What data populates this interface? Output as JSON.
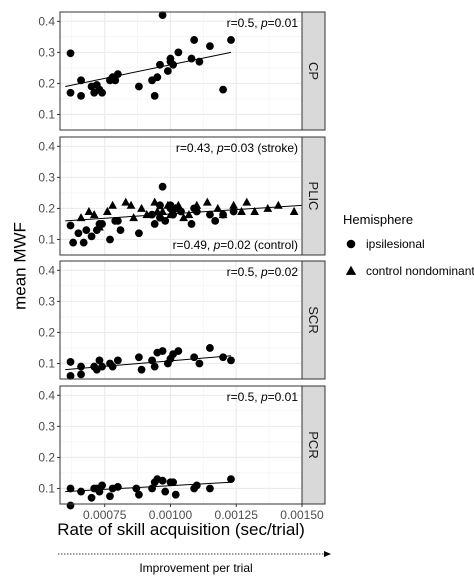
{
  "chart_data": {
    "type": "scatter",
    "ylabel": "mean MWF",
    "xlabel": "Rate of skill acquisition (sec/trial)",
    "improvement_label": "Improvement per trial",
    "xlim": [
      0.00058,
      0.0015
    ],
    "ylim": [
      0.05,
      0.43
    ],
    "x_ticks": [
      0.00075,
      0.001,
      0.00125,
      0.0015
    ],
    "x_tick_labels": [
      "0.00075",
      "0.00100",
      "0.00125",
      "0.00150"
    ],
    "y_ticks": [
      0.1,
      0.2,
      0.3,
      0.4
    ],
    "y_tick_labels": [
      "0.1",
      "0.2",
      "0.3",
      "0.4"
    ],
    "grid": true,
    "legend": {
      "title": "Hemisphere",
      "position": "right",
      "entries": [
        {
          "name": "ipsilesional",
          "shape": "circle"
        },
        {
          "name": "control nondominant",
          "shape": "triangle"
        }
      ]
    },
    "colors": {
      "points": "#000000",
      "strip_bg": "#d9d9d9",
      "grid": "#ebebeb",
      "panel_border": "#333333"
    },
    "panels": [
      {
        "strip": "CP",
        "annotations": [
          {
            "text": "r=0.5, p=0.01",
            "anchor": "top"
          }
        ],
        "series": [
          {
            "name": "ipsilesional",
            "shape": "circle",
            "points": [
              [
                0.00062,
                0.297
              ],
              [
                0.00062,
                0.17
              ],
              [
                0.00066,
                0.16
              ],
              [
                0.00066,
                0.21
              ],
              [
                0.0007,
                0.19
              ],
              [
                0.00071,
                0.17
              ],
              [
                0.00072,
                0.195
              ],
              [
                0.00073,
                0.18
              ],
              [
                0.00074,
                0.17
              ],
              [
                0.00077,
                0.21
              ],
              [
                0.00078,
                0.22
              ],
              [
                0.00079,
                0.21
              ],
              [
                0.0008,
                0.23
              ],
              [
                0.00088,
                0.19
              ],
              [
                0.00093,
                0.21
              ],
              [
                0.00094,
                0.16
              ],
              [
                0.00095,
                0.22
              ],
              [
                0.00096,
                0.26
              ],
              [
                0.00097,
                0.42
              ],
              [
                0.00099,
                0.24
              ],
              [
                0.001,
                0.28
              ],
              [
                0.001,
                0.27
              ],
              [
                0.00101,
                0.26
              ],
              [
                0.00103,
                0.3
              ],
              [
                0.00108,
                0.28
              ],
              [
                0.00109,
                0.34
              ],
              [
                0.00111,
                0.27
              ],
              [
                0.00115,
                0.32
              ],
              [
                0.0012,
                0.18
              ],
              [
                0.00123,
                0.34
              ]
            ]
          }
        ],
        "fit": [
          [
            0.0006,
            0.19
          ],
          [
            0.00123,
            0.3
          ]
        ]
      },
      {
        "strip": "PLIC",
        "annotations": [
          {
            "text": "r=0.43, p=0.03 (stroke)",
            "anchor": "top"
          },
          {
            "text": "r=0.49, p=0.02 (control)",
            "anchor": "bottom"
          }
        ],
        "series": [
          {
            "name": "ipsilesional",
            "shape": "circle",
            "points": [
              [
                0.00062,
                0.145
              ],
              [
                0.00063,
                0.09
              ],
              [
                0.00065,
                0.12
              ],
              [
                0.00067,
                0.09
              ],
              [
                0.00068,
                0.13
              ],
              [
                0.0007,
                0.11
              ],
              [
                0.00072,
                0.13
              ],
              [
                0.00073,
                0.15
              ],
              [
                0.00074,
                0.15
              ],
              [
                0.00077,
                0.1
              ],
              [
                0.00079,
                0.16
              ],
              [
                0.0008,
                0.16
              ],
              [
                0.00081,
                0.13
              ],
              [
                0.00088,
                0.12
              ],
              [
                0.00093,
                0.18
              ],
              [
                0.00094,
                0.15
              ],
              [
                0.00096,
                0.21
              ],
              [
                0.00096,
                0.17
              ],
              [
                0.00097,
                0.27
              ],
              [
                0.00098,
                0.16
              ],
              [
                0.001,
                0.21
              ],
              [
                0.001,
                0.2
              ],
              [
                0.00101,
                0.18
              ],
              [
                0.00102,
                0.2
              ],
              [
                0.00104,
                0.19
              ],
              [
                0.00108,
                0.15
              ],
              [
                0.00109,
                0.2
              ],
              [
                0.0011,
                0.19
              ],
              [
                0.00115,
                0.18
              ],
              [
                0.00117,
                0.16
              ],
              [
                0.0012,
                0.18
              ],
              [
                0.00124,
                0.19
              ]
            ]
          },
          {
            "name": "control nondominant",
            "shape": "triangle",
            "points": [
              [
                0.00066,
                0.17
              ],
              [
                0.00069,
                0.19
              ],
              [
                0.00071,
                0.18
              ],
              [
                0.00073,
                0.14
              ],
              [
                0.00076,
                0.19
              ],
              [
                0.00078,
                0.21
              ],
              [
                0.00083,
                0.22
              ],
              [
                0.00085,
                0.21
              ],
              [
                0.00086,
                0.17
              ],
              [
                0.00089,
                0.2
              ],
              [
                0.00091,
                0.18
              ],
              [
                0.00094,
                0.22
              ],
              [
                0.00095,
                0.19
              ],
              [
                0.00097,
                0.19
              ],
              [
                0.00099,
                0.21
              ],
              [
                0.001,
                0.18
              ],
              [
                0.00102,
                0.2
              ],
              [
                0.00103,
                0.21
              ],
              [
                0.00105,
                0.17
              ],
              [
                0.00107,
                0.18
              ],
              [
                0.0011,
                0.21
              ],
              [
                0.00114,
                0.22
              ],
              [
                0.00118,
                0.2
              ],
              [
                0.0012,
                0.18
              ],
              [
                0.00124,
                0.21
              ],
              [
                0.00127,
                0.19
              ],
              [
                0.00129,
                0.22
              ],
              [
                0.00132,
                0.19
              ],
              [
                0.00137,
                0.2
              ],
              [
                0.00141,
                0.21
              ],
              [
                0.00147,
                0.19
              ]
            ]
          }
        ],
        "fit": [
          [
            0.0006,
            0.16
          ],
          [
            0.0015,
            0.21
          ]
        ]
      },
      {
        "strip": "SCR",
        "annotations": [
          {
            "text": "r=0.5, p=0.02",
            "anchor": "top"
          }
        ],
        "series": [
          {
            "name": "ipsilesional",
            "shape": "circle",
            "points": [
              [
                0.00062,
                0.105
              ],
              [
                0.00062,
                0.06
              ],
              [
                0.00066,
                0.065
              ],
              [
                0.00066,
                0.09
              ],
              [
                0.00071,
                0.09
              ],
              [
                0.00072,
                0.08
              ],
              [
                0.00073,
                0.11
              ],
              [
                0.00074,
                0.09
              ],
              [
                0.00077,
                0.1
              ],
              [
                0.00078,
                0.09
              ],
              [
                0.0008,
                0.11
              ],
              [
                0.00088,
                0.12
              ],
              [
                0.00089,
                0.08
              ],
              [
                0.00093,
                0.11
              ],
              [
                0.00094,
                0.09
              ],
              [
                0.00095,
                0.135
              ],
              [
                0.00097,
                0.14
              ],
              [
                0.00099,
                0.1
              ],
              [
                0.001,
                0.115
              ],
              [
                0.00101,
                0.13
              ],
              [
                0.00103,
                0.14
              ],
              [
                0.00109,
                0.12
              ],
              [
                0.00111,
                0.1
              ],
              [
                0.00115,
                0.15
              ],
              [
                0.0012,
                0.12
              ],
              [
                0.00123,
                0.11
              ]
            ]
          }
        ],
        "fit": [
          [
            0.0006,
            0.08
          ],
          [
            0.00123,
            0.125
          ]
        ]
      },
      {
        "strip": "PCR",
        "annotations": [
          {
            "text": "r=0.5, p=0.01",
            "anchor": "top"
          }
        ],
        "series": [
          {
            "name": "ipsilesional",
            "shape": "circle",
            "points": [
              [
                0.00062,
                0.1
              ],
              [
                0.00062,
                0.045
              ],
              [
                0.00066,
                0.09
              ],
              [
                0.0007,
                0.07
              ],
              [
                0.00071,
                0.1
              ],
              [
                0.00072,
                0.1
              ],
              [
                0.00073,
                0.09
              ],
              [
                0.00074,
                0.11
              ],
              [
                0.00077,
                0.075
              ],
              [
                0.00078,
                0.1
              ],
              [
                0.0008,
                0.105
              ],
              [
                0.00087,
                0.1
              ],
              [
                0.00088,
                0.08
              ],
              [
                0.00093,
                0.1
              ],
              [
                0.00094,
                0.12
              ],
              [
                0.00095,
                0.13
              ],
              [
                0.00097,
                0.125
              ],
              [
                0.00098,
                0.09
              ],
              [
                0.001,
                0.12
              ],
              [
                0.00101,
                0.12
              ],
              [
                0.00102,
                0.08
              ],
              [
                0.00109,
                0.1
              ],
              [
                0.0011,
                0.11
              ],
              [
                0.00115,
                0.1
              ],
              [
                0.00123,
                0.13
              ]
            ]
          }
        ],
        "fit": [
          [
            0.0006,
            0.09
          ],
          [
            0.00123,
            0.12
          ]
        ]
      }
    ]
  }
}
